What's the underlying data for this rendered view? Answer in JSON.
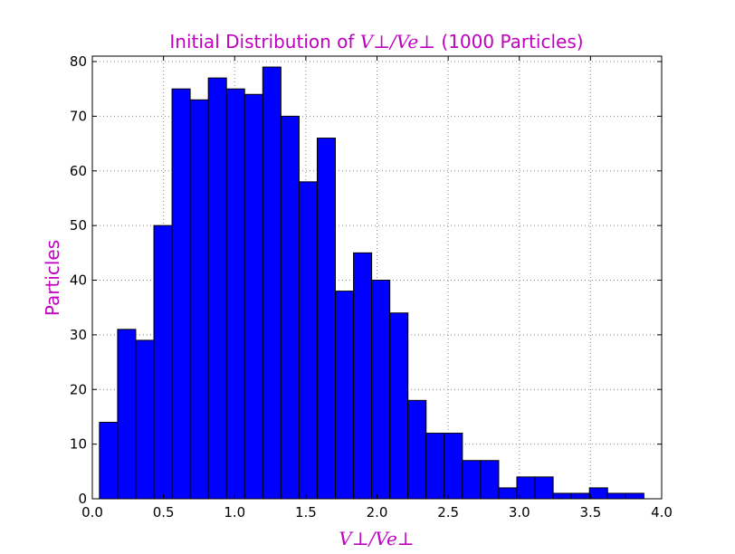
{
  "title": {
    "prefix": "Initial Distribution of ",
    "math": "V⊥/Ve⊥",
    "suffix": " (1000 Particles)"
  },
  "xlabel": "V⊥/Ve⊥",
  "ylabel": "Particles",
  "colors": {
    "bar_fill": "#0000ff",
    "bar_edge": "#000000",
    "label_color": "#bf00bf",
    "grid": "#888888"
  },
  "chart_data": {
    "type": "bar",
    "title": "Initial Distribution of V⊥/Ve⊥ (1000 Particles)",
    "xlabel": "V⊥/Ve⊥",
    "ylabel": "Particles",
    "xlim": [
      0.0,
      4.0
    ],
    "ylim": [
      0,
      81
    ],
    "grid": true,
    "xticks": [
      "0.0",
      "0.5",
      "1.0",
      "1.5",
      "2.0",
      "2.5",
      "3.0",
      "3.5",
      "4.0"
    ],
    "yticks": [
      "0",
      "10",
      "20",
      "30",
      "40",
      "50",
      "60",
      "70",
      "80"
    ],
    "bin_start": 0.05,
    "bin_width": 0.1275,
    "values": [
      14,
      31,
      29,
      50,
      75,
      73,
      77,
      75,
      74,
      79,
      70,
      58,
      66,
      38,
      45,
      40,
      34,
      18,
      12,
      12,
      7,
      7,
      2,
      4,
      4,
      1,
      1,
      2,
      1,
      1
    ]
  }
}
